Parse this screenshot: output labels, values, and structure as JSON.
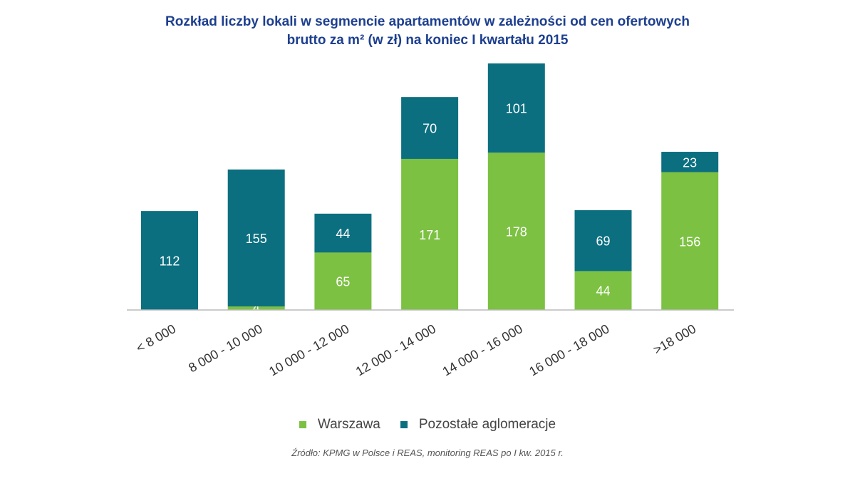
{
  "chart_data": {
    "type": "bar",
    "stacked": true,
    "title_lines": [
      "Rozkład liczby lokali w segmencie apartamentów w zależności od cen ofertowych",
      "brutto za m² (w zł) na koniec I kwartału 2015"
    ],
    "categories": [
      "< 8 000",
      "8 000 - 10 000",
      "10 000 - 12 000",
      "12 000 - 14 000",
      "14 000 - 16 000",
      "16 000 - 18 000",
      ">18 000"
    ],
    "series": [
      {
        "name": "Warszawa",
        "color": "#7cc142",
        "values": [
          0,
          4,
          65,
          171,
          178,
          44,
          156
        ]
      },
      {
        "name": "Pozostałe aglomeracje",
        "color": "#0b6f80",
        "values": [
          112,
          155,
          44,
          70,
          101,
          69,
          23
        ]
      }
    ],
    "xlabel": "",
    "ylabel": "",
    "ylim": [
      0,
      280
    ],
    "grid": false,
    "legend_position": "bottom",
    "source": "Źródło: KPMG w Polsce i REAS, monitoring REAS po I kw. 2015 r."
  }
}
